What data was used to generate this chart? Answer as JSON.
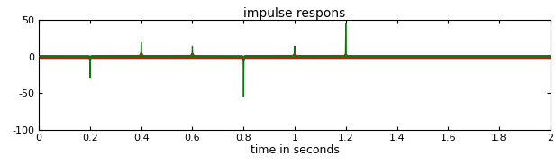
{
  "title": "impulse respons",
  "xlabel": "time in seconds",
  "xlim": [
    0,
    2
  ],
  "ylim": [
    -100,
    50
  ],
  "yticks": [
    -100,
    -50,
    0,
    50
  ],
  "xticks": [
    0,
    0.2,
    0.4,
    0.6,
    0.8,
    1.0,
    1.2,
    1.4,
    1.6,
    1.8,
    2.0
  ],
  "green_spikes": [
    {
      "t": 0.2,
      "amp": -30
    },
    {
      "t": 0.4,
      "amp": 20
    },
    {
      "t": 0.6,
      "amp": 14
    },
    {
      "t": 0.8,
      "amp": -55
    },
    {
      "t": 1.0,
      "amp": 14
    },
    {
      "t": 1.2,
      "amp": 45
    }
  ],
  "red_spikes": [
    {
      "t": 0.2,
      "amp": -3.0
    },
    {
      "t": 0.4,
      "amp": 3.5
    },
    {
      "t": 0.6,
      "amp": 3.0
    },
    {
      "t": 0.8,
      "amp": -5.0
    },
    {
      "t": 1.0,
      "amp": 3.0
    },
    {
      "t": 1.2,
      "amp": 2.0
    }
  ],
  "green_color": "#008000",
  "red_color": "#ff0000",
  "background_color": "#ffffff",
  "title_fontsize": 10,
  "label_fontsize": 9,
  "tick_fontsize": 8,
  "red_linewidth": 2.2,
  "green_linewidth": 0.9
}
